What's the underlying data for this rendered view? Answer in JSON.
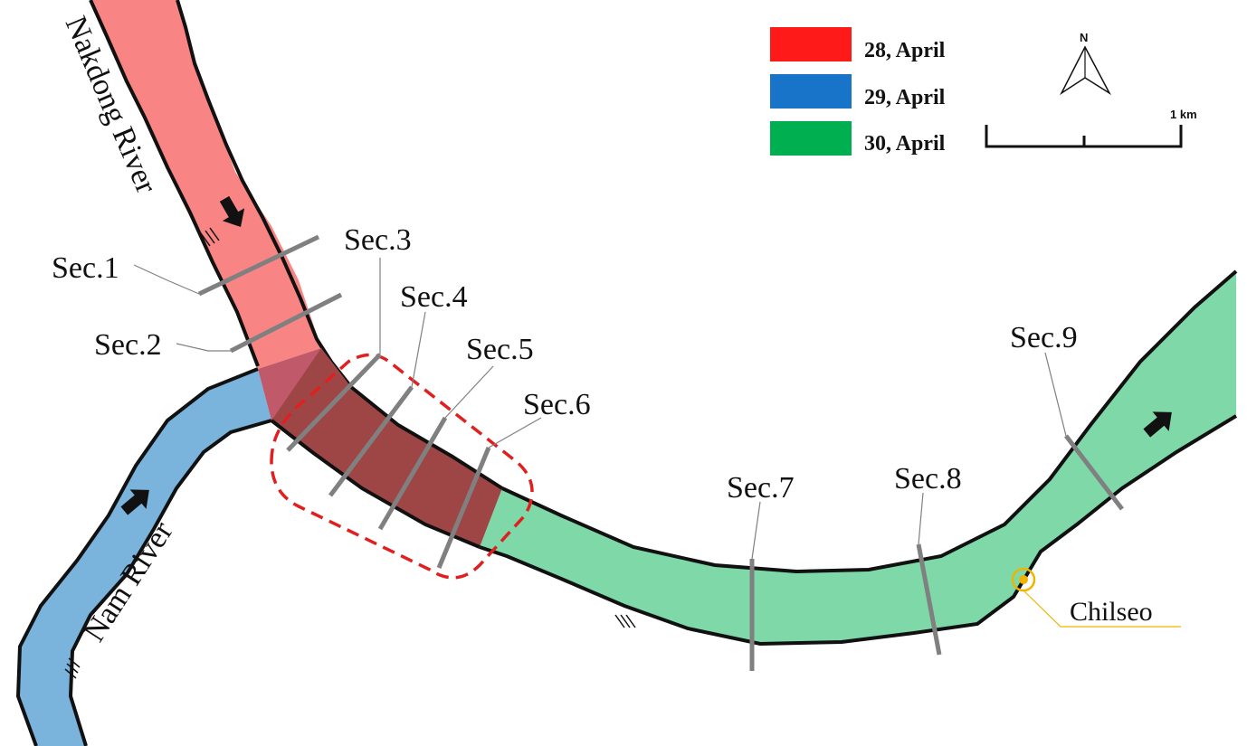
{
  "map": {
    "rivers": {
      "nakdong": "Nakdong River",
      "nam": "Nam River"
    },
    "sections": [
      "Sec.1",
      "Sec.2",
      "Sec.3",
      "Sec.4",
      "Sec.5",
      "Sec.6",
      "Sec.7",
      "Sec.8",
      "Sec.9"
    ],
    "place": "Chilseo",
    "legend": [
      {
        "label": "28, April",
        "color": "#ff1a1a"
      },
      {
        "label": "29, April",
        "color": "#1874c8"
      },
      {
        "label": "30, April",
        "color": "#00b050"
      }
    ],
    "north_label": "N",
    "scale_label": "1 km",
    "colors": {
      "nakdong_reach": "#f98484",
      "nam_reach": "#7ab3dc",
      "downstream_reach": "#7ed8a8",
      "overlap_zone": "#9e4646",
      "confluence_zone": "#c05a6a",
      "highlight_box": "#e02020",
      "section_line": "#808080",
      "marker": "#f0b400"
    }
  }
}
